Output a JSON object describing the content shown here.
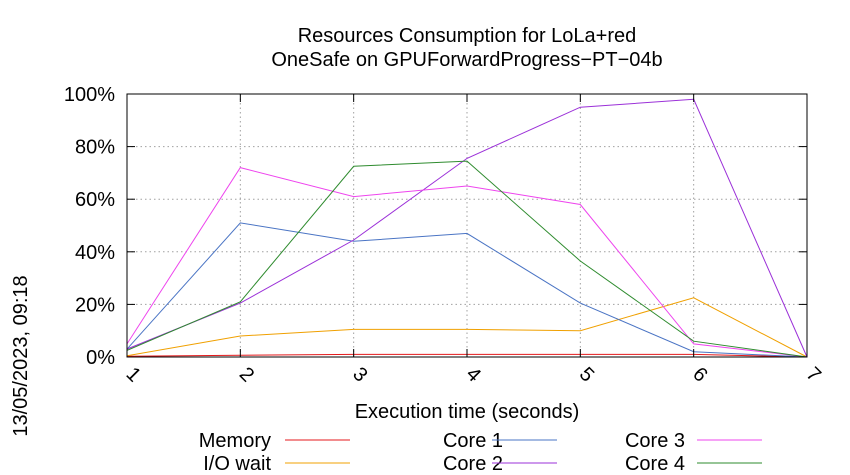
{
  "side_label": "13/05/2023, 09:18",
  "chart_data": {
    "type": "line",
    "title": [
      "Resources Consumption for LoLa+red",
      "OneSafe on GPUForwardProgress−PT−04b"
    ],
    "xlabel": "Execution time (seconds)",
    "ylabel": "",
    "xlim": [
      1,
      7
    ],
    "ylim": [
      0,
      100
    ],
    "x_ticks": [
      1,
      2,
      3,
      4,
      5,
      6,
      7
    ],
    "y_ticks": [
      0,
      20,
      40,
      60,
      80,
      100
    ],
    "y_tick_labels": [
      "0%",
      "20%",
      "40%",
      "60%",
      "80%",
      "100%"
    ],
    "grid": true,
    "legend_position": "bottom",
    "x": [
      1,
      2,
      3,
      4,
      5,
      6,
      7
    ],
    "series": [
      {
        "name": "Memory",
        "color": "#e41a1c",
        "values": [
          0.3,
          0.7,
          1.0,
          1.0,
          1.0,
          1.0,
          0
        ]
      },
      {
        "name": "I/O wait",
        "color": "#f0a000",
        "values": [
          0.5,
          8,
          10.5,
          10.5,
          10,
          22.5,
          0
        ]
      },
      {
        "name": "Core 1",
        "color": "#4a74c4",
        "values": [
          3,
          51,
          44,
          47,
          20.5,
          2,
          0
        ]
      },
      {
        "name": "Core 2",
        "color": "#9b30d8",
        "values": [
          3,
          20.5,
          44.5,
          75.5,
          95,
          98,
          0
        ]
      },
      {
        "name": "Core 3",
        "color": "#ee44ee",
        "values": [
          5,
          72,
          61,
          65,
          58,
          5,
          0
        ]
      },
      {
        "name": "Core 4",
        "color": "#2e8b2e",
        "values": [
          2.5,
          21,
          72.5,
          74.5,
          36.5,
          6,
          0
        ]
      }
    ]
  }
}
